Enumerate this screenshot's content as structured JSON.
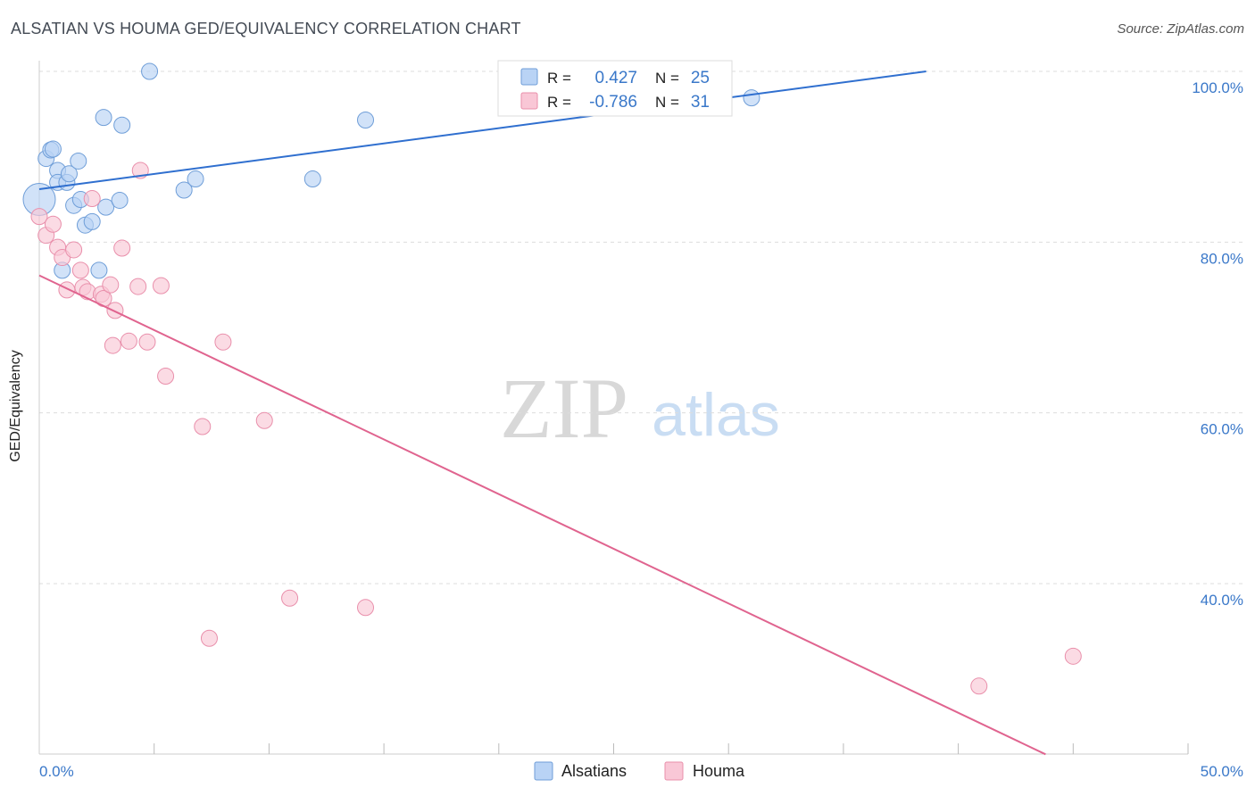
{
  "title": "ALSATIAN VS HOUMA GED/EQUIVALENCY CORRELATION CHART",
  "source": "Source: ZipAtlas.com",
  "watermark": {
    "zip": "ZIP",
    "atlas": "atlas"
  },
  "legend_box": [
    {
      "r_label": "R =",
      "r_value": "0.427",
      "n_label": "N =",
      "n_value": "25"
    },
    {
      "r_label": "R =",
      "r_value": "-0.786",
      "n_label": "N =",
      "n_value": "31"
    }
  ],
  "colors": {
    "blue_fill": "#b9d3f5",
    "blue_stroke": "#6f9ed8",
    "blue_line": "#2f6fcf",
    "pink_fill": "#f9c7d6",
    "pink_stroke": "#e98fab",
    "pink_line": "#e0648f",
    "axis_text": "#3a78c9",
    "grid": "#dddddd"
  },
  "chart_data": {
    "type": "scatter",
    "title": "ALSATIAN VS HOUMA GED/EQUIVALENCY CORRELATION CHART",
    "xlabel": "",
    "ylabel": "GED/Equivalency",
    "xlim": [
      0,
      50
    ],
    "ylim": [
      20,
      101
    ],
    "x_tick_labels": [
      "0.0%",
      "50.0%"
    ],
    "y_ticks": [
      40,
      60,
      80,
      100
    ],
    "y_tick_labels": [
      "40.0%",
      "60.0%",
      "80.0%",
      "100.0%"
    ],
    "legend": [
      "Alsatians",
      "Houma"
    ],
    "series": [
      {
        "name": "Alsatians",
        "r": 0.427,
        "n": 25,
        "trend": {
          "x": [
            0,
            38.6
          ],
          "y": [
            86.2,
            100.0
          ]
        },
        "points": [
          {
            "x": 0.0,
            "y": 85.0,
            "big": true
          },
          {
            "x": 0.3,
            "y": 89.8
          },
          {
            "x": 0.5,
            "y": 90.8
          },
          {
            "x": 0.6,
            "y": 90.9
          },
          {
            "x": 0.8,
            "y": 88.4
          },
          {
            "x": 0.8,
            "y": 87.0
          },
          {
            "x": 1.0,
            "y": 76.7
          },
          {
            "x": 1.2,
            "y": 87.0
          },
          {
            "x": 1.3,
            "y": 88.0
          },
          {
            "x": 1.5,
            "y": 84.3
          },
          {
            "x": 1.7,
            "y": 89.5
          },
          {
            "x": 1.8,
            "y": 85.0
          },
          {
            "x": 2.0,
            "y": 82.0
          },
          {
            "x": 2.3,
            "y": 82.4
          },
          {
            "x": 2.6,
            "y": 76.7
          },
          {
            "x": 2.8,
            "y": 94.6
          },
          {
            "x": 2.9,
            "y": 84.1
          },
          {
            "x": 3.5,
            "y": 84.9
          },
          {
            "x": 3.6,
            "y": 93.7
          },
          {
            "x": 4.8,
            "y": 100.0
          },
          {
            "x": 6.3,
            "y": 86.1
          },
          {
            "x": 6.8,
            "y": 87.4
          },
          {
            "x": 11.9,
            "y": 87.4
          },
          {
            "x": 14.2,
            "y": 94.3
          },
          {
            "x": 31.0,
            "y": 96.9
          }
        ]
      },
      {
        "name": "Houma",
        "r": -0.786,
        "n": 31,
        "trend": {
          "x": [
            0,
            43.8
          ],
          "y": [
            76.1,
            20.0
          ]
        },
        "points": [
          {
            "x": 0.0,
            "y": 83.0
          },
          {
            "x": 0.3,
            "y": 80.8
          },
          {
            "x": 0.6,
            "y": 82.1
          },
          {
            "x": 0.8,
            "y": 79.4
          },
          {
            "x": 1.0,
            "y": 78.2
          },
          {
            "x": 1.2,
            "y": 74.4
          },
          {
            "x": 1.5,
            "y": 79.1
          },
          {
            "x": 1.8,
            "y": 76.7
          },
          {
            "x": 1.9,
            "y": 74.7
          },
          {
            "x": 2.1,
            "y": 74.2
          },
          {
            "x": 2.3,
            "y": 85.1
          },
          {
            "x": 2.7,
            "y": 73.9
          },
          {
            "x": 2.8,
            "y": 73.4
          },
          {
            "x": 3.1,
            "y": 75.0
          },
          {
            "x": 3.2,
            "y": 67.9
          },
          {
            "x": 3.3,
            "y": 72.0
          },
          {
            "x": 3.6,
            "y": 79.3
          },
          {
            "x": 3.9,
            "y": 68.4
          },
          {
            "x": 4.3,
            "y": 74.8
          },
          {
            "x": 4.4,
            "y": 88.4
          },
          {
            "x": 4.7,
            "y": 68.3
          },
          {
            "x": 5.3,
            "y": 74.9
          },
          {
            "x": 5.5,
            "y": 64.3
          },
          {
            "x": 7.1,
            "y": 58.4
          },
          {
            "x": 7.4,
            "y": 33.6
          },
          {
            "x": 8.0,
            "y": 68.3
          },
          {
            "x": 9.8,
            "y": 59.1
          },
          {
            "x": 10.9,
            "y": 38.3
          },
          {
            "x": 14.2,
            "y": 37.2
          },
          {
            "x": 40.9,
            "y": 28.0
          },
          {
            "x": 45.0,
            "y": 31.5
          }
        ]
      }
    ]
  }
}
